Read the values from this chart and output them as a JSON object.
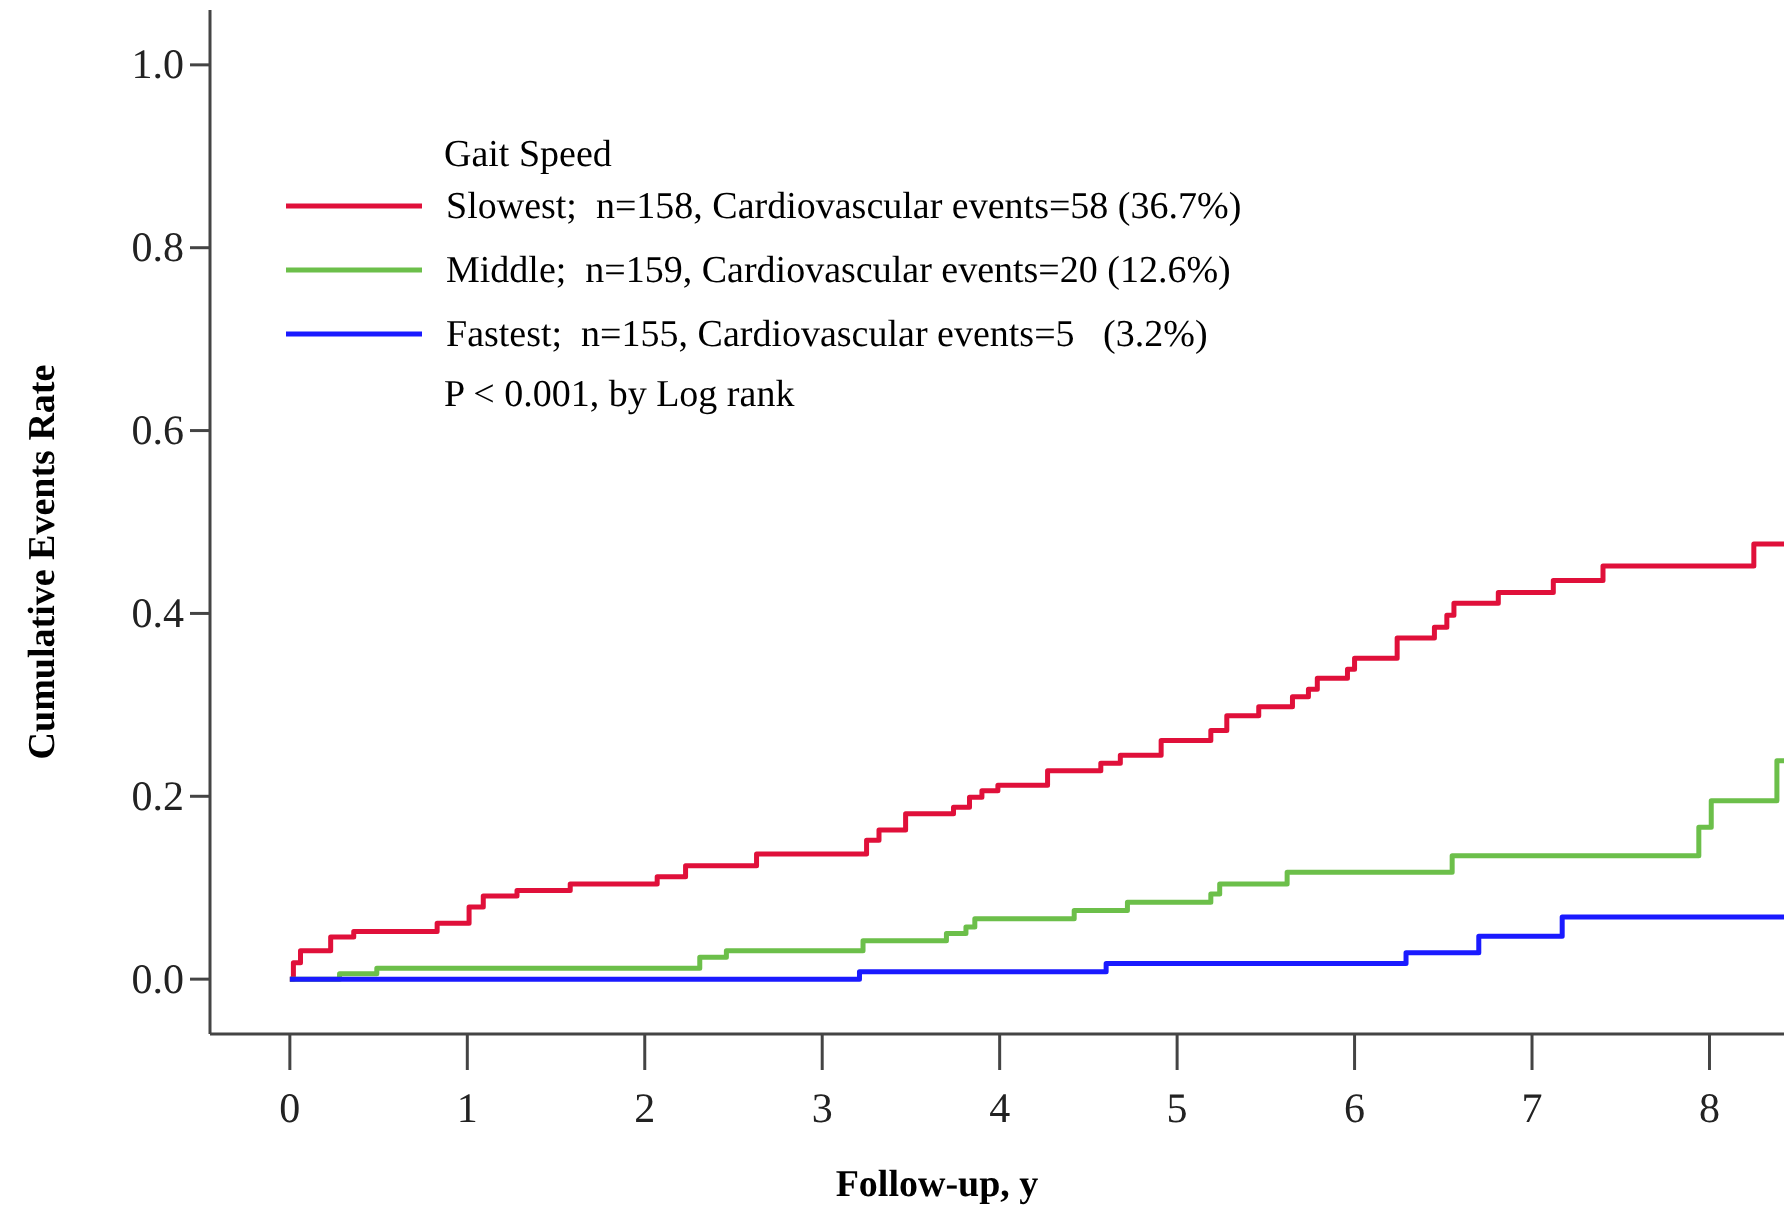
{
  "chart_data": {
    "type": "step",
    "xlabel": "Follow-up, y",
    "ylabel": "Cumulative Events Rate",
    "legend_title": "Gait Speed",
    "legend": "top left",
    "annotations": [
      "P < 0.001, by Log rank"
    ],
    "xlim": [
      -0.45,
      8.42
    ],
    "xticks": [
      0,
      1,
      2,
      3,
      4,
      5,
      6,
      7,
      8
    ],
    "ylim": [
      -0.06,
      1.06
    ],
    "yticks": [
      {
        "value": 0,
        "label": "0.0"
      },
      0.2,
      0.4,
      0.6,
      0.8,
      {
        "value": 1,
        "label": "1.0"
      }
    ],
    "grid": false,
    "series": [
      {
        "name": "Slowest;  n=158, Cardiovascular events=58 (36.7%)",
        "color": "#e0103a",
        "x": [
          0,
          0.02,
          0.06,
          0.23,
          0.36,
          0.83,
          1.01,
          1.09,
          1.28,
          1.58,
          2.07,
          2.23,
          2.63,
          3.25,
          3.32,
          3.47,
          3.74,
          3.83,
          3.9,
          3.99,
          4.27,
          4.57,
          4.68,
          4.91,
          5.19,
          5.28,
          5.46,
          5.65,
          5.74,
          5.79,
          5.96,
          6.0,
          6.24,
          6.45,
          6.52,
          6.56,
          6.81,
          7.12,
          7.4,
          8.25,
          8.42
        ],
        "values": [
          0,
          0.018,
          0.031,
          0.046,
          0.052,
          0.061,
          0.079,
          0.091,
          0.097,
          0.104,
          0.112,
          0.124,
          0.137,
          0.152,
          0.163,
          0.181,
          0.188,
          0.199,
          0.206,
          0.212,
          0.228,
          0.236,
          0.245,
          0.261,
          0.272,
          0.288,
          0.298,
          0.309,
          0.317,
          0.329,
          0.339,
          0.351,
          0.373,
          0.385,
          0.398,
          0.411,
          0.423,
          0.436,
          0.452,
          0.476,
          0.476
        ]
      },
      {
        "name": "Middle;  n=159, Cardiovascular events=20 (12.6%)",
        "color": "#6cbf4a",
        "x": [
          0,
          0.28,
          0.49,
          2.31,
          2.46,
          3.23,
          3.7,
          3.81,
          3.86,
          4.42,
          4.72,
          5.19,
          5.24,
          5.62,
          6.55,
          7.94,
          8.01,
          8.38,
          8.42
        ],
        "values": [
          0,
          0.006,
          0.012,
          0.024,
          0.031,
          0.042,
          0.05,
          0.057,
          0.066,
          0.075,
          0.084,
          0.093,
          0.104,
          0.117,
          0.135,
          0.166,
          0.195,
          0.239,
          0.239
        ]
      },
      {
        "name": "Fastest;  n=155, Cardiovascular events=5   (3.2%)",
        "color": "#1a1aff",
        "x": [
          0,
          3.21,
          4.6,
          6.29,
          6.7,
          7.17,
          8.42
        ],
        "values": [
          0,
          0.008,
          0.017,
          0.029,
          0.047,
          0.068,
          0.068
        ]
      }
    ]
  }
}
